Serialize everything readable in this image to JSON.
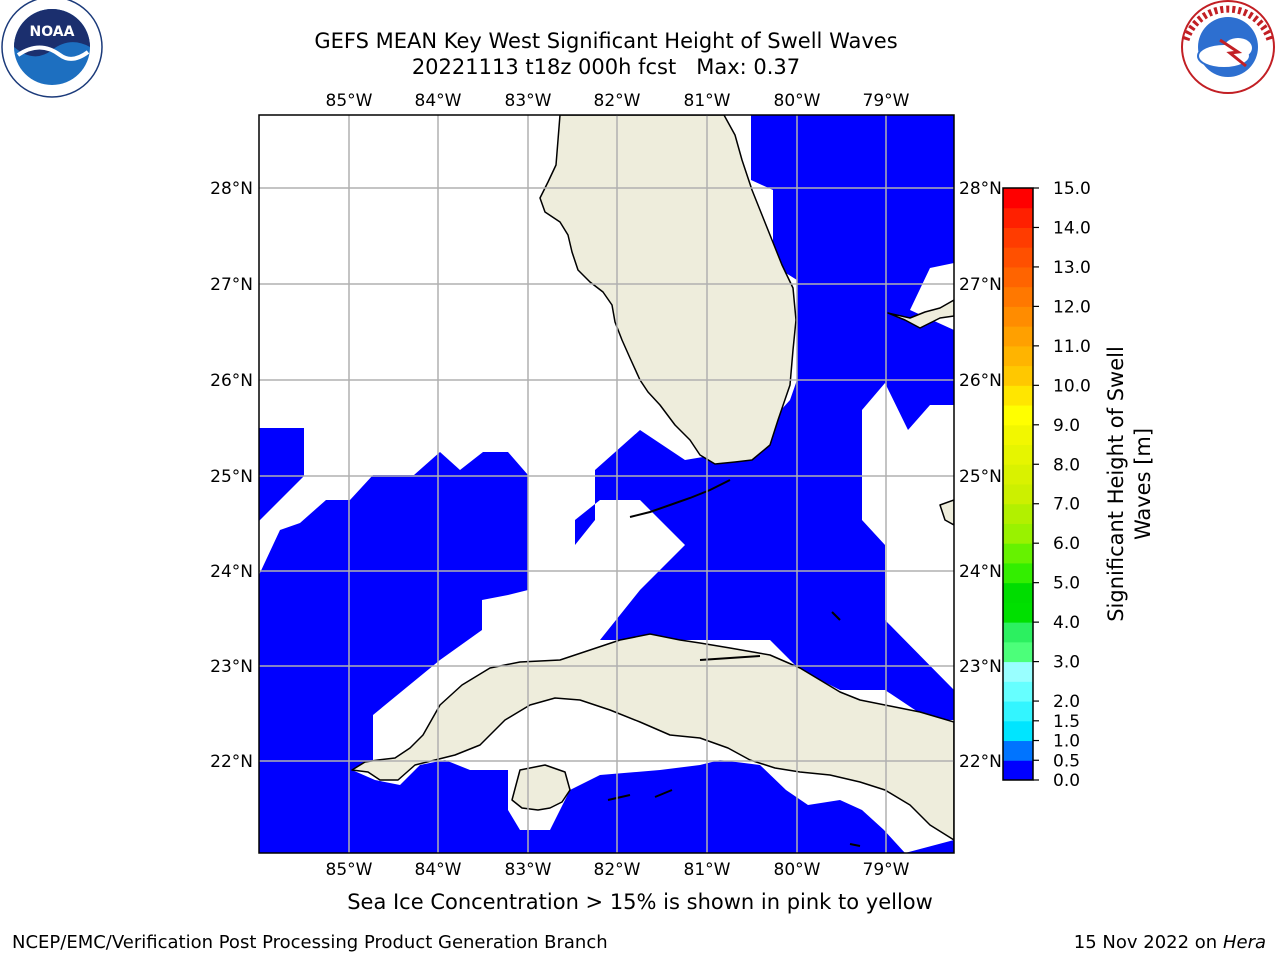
{
  "title": {
    "line1": "GEFS MEAN Key West Significant Height of Swell Waves",
    "line2": "20221113 t18z 000h fcst   Max: 0.37"
  },
  "caption": "Sea Ice Concentration > 15% is shown in pink to yellow",
  "footer": {
    "left": "NCEP/EMC/Verification Post Processing Product Generation Branch",
    "date": "15 Nov 2022 on",
    "machine": "Hera"
  },
  "logos": {
    "left": {
      "name": "noaa-logo",
      "text": "NOAA",
      "ring_text": "NATIONAL OCEANIC AND ATMOSPHERIC ADMINISTRATION · U.S. DEPARTMENT OF COMMERCE"
    },
    "right": {
      "name": "nws-logo",
      "ring_text": "NATIONAL WEATHER SERVICE"
    }
  },
  "map": {
    "projection": "PlateCarree",
    "lon_range": [
      -86.0,
      -78.25
    ],
    "lat_range": [
      21.0,
      28.75
    ],
    "lon_ticks": [
      {
        "value": -85,
        "label": "85°W"
      },
      {
        "value": -84,
        "label": "84°W"
      },
      {
        "value": -83,
        "label": "83°W"
      },
      {
        "value": -82,
        "label": "82°W"
      },
      {
        "value": -81,
        "label": "81°W"
      },
      {
        "value": -80,
        "label": "80°W"
      },
      {
        "value": -79,
        "label": "79°W"
      }
    ],
    "lat_ticks": [
      {
        "value": 28,
        "label": "28°N"
      },
      {
        "value": 27,
        "label": "27°N"
      },
      {
        "value": 26,
        "label": "26°N"
      },
      {
        "value": 25,
        "label": "25°N"
      },
      {
        "value": 24,
        "label": "24°N"
      },
      {
        "value": 23,
        "label": "23°N"
      },
      {
        "value": 22,
        "label": "22°N"
      }
    ],
    "colors": {
      "land": "#eeeddc",
      "swell_0_05": "#0000ff",
      "grid": "#b0b0b0",
      "coast": "#000000",
      "background": "#ffffff"
    },
    "swell_field_value_m": "0.0–0.5 (max 0.37)"
  },
  "colorbar": {
    "label_line1": "Significant Height of Swell",
    "label_line2": "Waves [m]",
    "levels": [
      {
        "from": 0.0,
        "to": 0.5,
        "color": "#0000ff"
      },
      {
        "from": 0.5,
        "to": 1.0,
        "color": "#0074ff"
      },
      {
        "from": 1.0,
        "to": 1.5,
        "color": "#00e5ff"
      },
      {
        "from": 1.5,
        "to": 2.0,
        "color": "#33f5ff"
      },
      {
        "from": 2.0,
        "to": 2.5,
        "color": "#66ffff"
      },
      {
        "from": 2.5,
        "to": 3.0,
        "color": "#99ffff"
      },
      {
        "from": 3.0,
        "to": 3.5,
        "color": "#4cff7a"
      },
      {
        "from": 3.5,
        "to": 4.0,
        "color": "#2cf060"
      },
      {
        "from": 4.0,
        "to": 4.5,
        "color": "#00e000"
      },
      {
        "from": 4.5,
        "to": 5.0,
        "color": "#00dd00"
      },
      {
        "from": 5.0,
        "to": 5.5,
        "color": "#33ee00"
      },
      {
        "from": 5.5,
        "to": 6.0,
        "color": "#66f200"
      },
      {
        "from": 6.0,
        "to": 6.5,
        "color": "#99f200"
      },
      {
        "from": 6.5,
        "to": 7.0,
        "color": "#b2f000"
      },
      {
        "from": 7.0,
        "to": 7.5,
        "color": "#ccf000"
      },
      {
        "from": 7.5,
        "to": 8.0,
        "color": "#d9f200"
      },
      {
        "from": 8.0,
        "to": 8.5,
        "color": "#e6f500"
      },
      {
        "from": 8.5,
        "to": 9.0,
        "color": "#f2f700"
      },
      {
        "from": 9.0,
        "to": 9.5,
        "color": "#ffff00"
      },
      {
        "from": 9.5,
        "to": 10.0,
        "color": "#ffe600"
      },
      {
        "from": 10.0,
        "to": 10.5,
        "color": "#ffc800"
      },
      {
        "from": 10.5,
        "to": 11.0,
        "color": "#ffb400"
      },
      {
        "from": 11.0,
        "to": 11.5,
        "color": "#ffa000"
      },
      {
        "from": 11.5,
        "to": 12.0,
        "color": "#ff8c00"
      },
      {
        "from": 12.0,
        "to": 12.5,
        "color": "#ff7800"
      },
      {
        "from": 12.5,
        "to": 13.0,
        "color": "#ff6400"
      },
      {
        "from": 13.0,
        "to": 13.5,
        "color": "#ff5000"
      },
      {
        "from": 13.5,
        "to": 14.0,
        "color": "#ff3c00"
      },
      {
        "from": 14.0,
        "to": 14.5,
        "color": "#ff2000"
      },
      {
        "from": 14.5,
        "to": 15.0,
        "color": "#ff0000"
      }
    ],
    "ticks": [
      "0.0",
      "0.5",
      "1.0",
      "1.5",
      "2.0",
      "3.0",
      "4.0",
      "5.0",
      "6.0",
      "7.0",
      "8.0",
      "9.0",
      "10.0",
      "11.0",
      "12.0",
      "13.0",
      "14.0",
      "15.0"
    ],
    "range": [
      0,
      15
    ]
  }
}
